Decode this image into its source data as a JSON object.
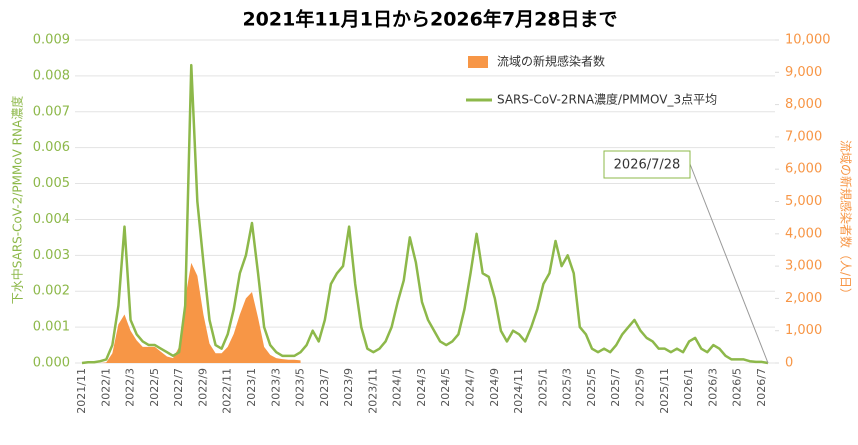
{
  "chart_data": {
    "type": "line",
    "title": "2021年11月1日から2026年7月28日まで",
    "y_label": "下水中SARS-CoV-2/PMMoV RNA濃度",
    "y2_label": "流域の新規感染者数（人/日）",
    "annotation": "2026/7/28",
    "grid": true,
    "legend": "top",
    "categories": [
      "2021/11",
      null,
      null,
      null,
      "2022/1",
      null,
      null,
      null,
      "2022/3",
      null,
      null,
      null,
      "2022/5",
      null,
      null,
      null,
      "2022/7",
      null,
      null,
      null,
      "2022/9",
      null,
      null,
      null,
      "2022/11",
      null,
      null,
      null,
      "2023/1",
      null,
      null,
      null,
      "2023/3",
      null,
      null,
      null,
      "2023/5",
      null,
      null,
      null,
      "2023/7",
      null,
      null,
      null,
      "2023/9",
      null,
      null,
      null,
      "2023/11",
      null,
      null,
      null,
      "2024/1",
      null,
      null,
      null,
      "2024/3",
      null,
      null,
      null,
      "2024/5",
      null,
      null,
      null,
      "2024/7",
      null,
      null,
      null,
      "2024/9",
      null,
      null,
      null,
      "2024/11",
      null,
      null,
      null,
      "2025/1",
      null,
      null,
      null,
      "2025/3",
      null,
      null,
      null,
      "2025/5",
      null,
      null,
      null,
      "2025/7",
      null,
      null,
      null,
      "2025/9",
      null,
      null,
      null,
      "2025/11",
      null,
      null,
      null,
      "2026/1",
      null,
      null,
      null,
      "2026/3",
      null,
      null,
      null,
      "2026/5",
      null,
      null,
      null,
      "2026/7",
      null
    ],
    "ylim": [
      0,
      0.009
    ],
    "yticks": [
      {
        "value": 0,
        "label": "0.000"
      },
      {
        "value": 0.001,
        "label": "0.001"
      },
      {
        "value": 0.002,
        "label": "0.002"
      },
      {
        "value": 0.003,
        "label": "0.003"
      },
      {
        "value": 0.004,
        "label": "0.004"
      },
      {
        "value": 0.005,
        "label": "0.005"
      },
      {
        "value": 0.006,
        "label": "0.006"
      },
      {
        "value": 0.007,
        "label": "0.007"
      },
      {
        "value": 0.008,
        "label": "0.008"
      },
      {
        "value": 0.009,
        "label": "0.009"
      }
    ],
    "y2lim": [
      0,
      10000
    ],
    "y2ticks": [
      0,
      {
        "value": 1000,
        "label": "1,000"
      },
      {
        "value": 2000,
        "label": "2,000"
      },
      {
        "value": 3000,
        "label": "3,000"
      },
      {
        "value": 4000,
        "label": "4,000"
      },
      {
        "value": 5000,
        "label": "5,000"
      },
      {
        "value": 6000,
        "label": "6,000"
      },
      {
        "value": 7000,
        "label": "7,000"
      },
      {
        "value": 8000,
        "label": "8,000"
      },
      {
        "value": 9000,
        "label": "9,000"
      },
      {
        "value": 10000,
        "label": "10,000"
      }
    ],
    "series": [
      {
        "name": "流域の新規感染者数",
        "type": "area",
        "axis": "y2",
        "color": "#f79646",
        "values": [
          0,
          0,
          0,
          0,
          20,
          300,
          1200,
          1500,
          1000,
          700,
          500,
          500,
          500,
          350,
          200,
          150,
          500,
          2000,
          3100,
          2700,
          1500,
          600,
          300,
          300,
          500,
          900,
          1500,
          2000,
          2200,
          1400,
          500,
          250,
          150,
          120,
          100,
          100,
          80,
          null,
          null,
          null,
          null,
          null,
          null,
          null,
          null,
          null,
          null,
          null,
          null,
          null,
          null,
          null,
          null,
          null,
          null,
          null,
          null,
          null,
          null,
          null,
          null,
          null,
          null,
          null,
          null,
          null,
          null,
          null,
          null,
          null,
          null,
          null,
          null,
          null,
          null,
          null,
          null,
          null,
          null,
          null,
          null,
          null,
          null,
          null,
          null,
          null,
          null,
          null,
          null,
          null,
          null,
          null,
          null,
          null,
          null,
          null,
          null,
          null,
          null,
          null,
          null,
          null,
          null,
          null,
          null,
          null,
          null,
          null,
          null,
          null,
          null,
          null,
          null,
          null
        ]
      },
      {
        "name": "SARS-CoV-2RNA濃度/PMMOV_3点平均",
        "type": "line",
        "color": "#8db84a",
        "values": [
          0,
          2e-05,
          2e-05,
          5e-05,
          0.0001,
          0.0005,
          0.0016,
          0.0038,
          0.0012,
          0.0008,
          0.0006,
          0.0005,
          0.0005,
          0.0004,
          0.0003,
          0.0002,
          0.0003,
          0.0016,
          0.0083,
          0.0045,
          0.0028,
          0.0012,
          0.0005,
          0.0004,
          0.0008,
          0.0015,
          0.0025,
          0.003,
          0.0039,
          0.0025,
          0.001,
          0.0005,
          0.0003,
          0.0002,
          0.0002,
          0.0002,
          0.0003,
          0.0005,
          0.0009,
          0.0006,
          0.0012,
          0.0022,
          0.0025,
          0.0027,
          0.0038,
          0.0022,
          0.001,
          0.0004,
          0.0003,
          0.0004,
          0.0006,
          0.001,
          0.0017,
          0.0023,
          0.0035,
          0.0028,
          0.0017,
          0.0012,
          0.0009,
          0.0006,
          0.0005,
          0.0006,
          0.0008,
          0.0015,
          0.0025,
          0.0036,
          0.0025,
          0.0024,
          0.0018,
          0.0009,
          0.0006,
          0.0009,
          0.0008,
          0.0006,
          0.001,
          0.0015,
          0.0022,
          0.0025,
          0.0034,
          0.0027,
          0.003,
          0.0025,
          0.001,
          0.0008,
          0.0004,
          0.0003,
          0.0004,
          0.0003,
          0.0005,
          0.0008,
          0.001,
          0.0012,
          0.0009,
          0.0007,
          0.0006,
          0.0004,
          0.0004,
          0.0003,
          0.0004,
          0.0003,
          0.0006,
          0.0007,
          0.0004,
          0.0003,
          0.0005,
          0.0004,
          0.0002,
          0.0001,
          0.0001,
          0.0001,
          5e-05,
          3e-05,
          3e-05,
          0
        ]
      }
    ]
  }
}
